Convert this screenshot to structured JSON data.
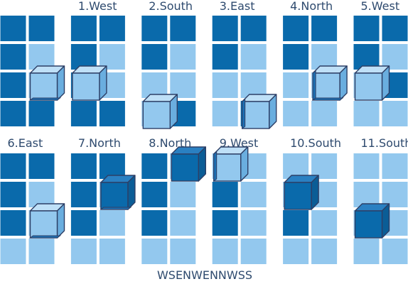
{
  "colors": {
    "dark": "#0a6aab",
    "light": "#93c8ee",
    "cube_front": "#93c8ee",
    "cube_top": "#bfe0f7",
    "cube_side": "#6aaedf",
    "cube_bottom_dark": "#1d6fb2",
    "cube_stroke": "#2d3f66",
    "text": "#2e4a6e"
  },
  "sequence": "WSENWENNWSS",
  "initial": {
    "label": "",
    "grid": [
      [
        1,
        1
      ],
      [
        1,
        0
      ],
      [
        1,
        0
      ],
      [
        1,
        1
      ]
    ],
    "cube": {
      "row": 2,
      "col": 1,
      "face": "light",
      "edge": "bottom"
    }
  },
  "steps": [
    {
      "label": "1.West",
      "grid": [
        [
          1,
          1
        ],
        [
          1,
          0
        ],
        [
          1,
          0
        ],
        [
          1,
          1
        ]
      ],
      "cube": {
        "row": 2,
        "col": 0,
        "face": "light",
        "edge": "none"
      }
    },
    {
      "label": "2.South",
      "grid": [
        [
          1,
          1
        ],
        [
          1,
          0
        ],
        [
          0,
          0
        ],
        [
          0,
          1
        ]
      ],
      "cube": {
        "row": 3,
        "col": 0,
        "face": "light",
        "edge": "none"
      }
    },
    {
      "label": "3.East",
      "grid": [
        [
          1,
          1
        ],
        [
          1,
          0
        ],
        [
          0,
          0
        ],
        [
          0,
          1
        ]
      ],
      "cube": {
        "row": 3,
        "col": 1,
        "face": "light",
        "edge": "left"
      }
    },
    {
      "label": "4.North",
      "grid": [
        [
          1,
          1
        ],
        [
          1,
          0
        ],
        [
          0,
          0
        ],
        [
          0,
          0
        ]
      ],
      "cube": {
        "row": 2,
        "col": 1,
        "face": "light",
        "edge": "left-bottom"
      }
    },
    {
      "label": "5.West",
      "grid": [
        [
          1,
          1
        ],
        [
          1,
          0
        ],
        [
          0,
          1
        ],
        [
          0,
          0
        ]
      ],
      "cube": {
        "row": 2,
        "col": 0,
        "face": "light",
        "edge": "none"
      }
    },
    {
      "label": "6.East",
      "grid": [
        [
          1,
          1
        ],
        [
          1,
          0
        ],
        [
          1,
          0
        ],
        [
          0,
          0
        ]
      ],
      "cube": {
        "row": 2,
        "col": 1,
        "face": "light",
        "edge": "bottom"
      }
    },
    {
      "label": "7.North",
      "grid": [
        [
          1,
          1
        ],
        [
          1,
          0
        ],
        [
          1,
          0
        ],
        [
          0,
          0
        ]
      ],
      "cube": {
        "row": 1,
        "col": 1,
        "face": "dark",
        "edge": "bottom"
      }
    },
    {
      "label": "8.North",
      "grid": [
        [
          1,
          0
        ],
        [
          1,
          0
        ],
        [
          1,
          0
        ],
        [
          0,
          0
        ]
      ],
      "cube": {
        "row": 0,
        "col": 1,
        "face": "dark",
        "edge": "none"
      }
    },
    {
      "label": "9.West",
      "grid": [
        [
          0,
          0
        ],
        [
          1,
          0
        ],
        [
          1,
          0
        ],
        [
          0,
          0
        ]
      ],
      "cube": {
        "row": 0,
        "col": 0,
        "face": "light",
        "edge": "left"
      }
    },
    {
      "label": "10.South",
      "grid": [
        [
          0,
          0
        ],
        [
          0,
          0
        ],
        [
          1,
          0
        ],
        [
          0,
          0
        ]
      ],
      "cube": {
        "row": 1,
        "col": 0,
        "face": "dark",
        "edge": "none"
      }
    },
    {
      "label": "11.South",
      "grid": [
        [
          0,
          0
        ],
        [
          0,
          0
        ],
        [
          0,
          0
        ],
        [
          0,
          0
        ]
      ],
      "cube": {
        "row": 2,
        "col": 0,
        "face": "dark",
        "edge": "none"
      }
    }
  ]
}
